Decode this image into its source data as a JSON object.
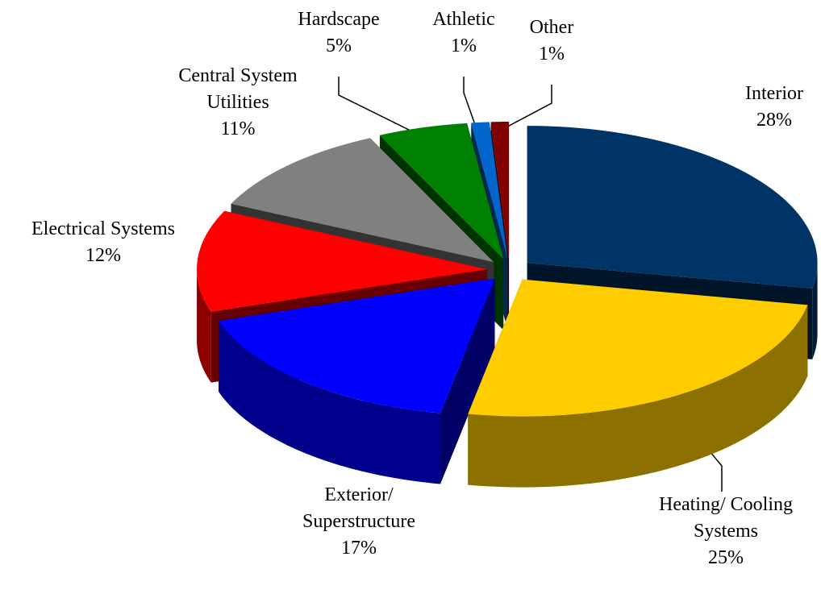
{
  "chart_data": {
    "type": "pie",
    "categories": [
      "Interior",
      "Heating/ Cooling Systems",
      "Exterior/ Superstructure",
      "Electrical Systems",
      "Central System Utilities",
      "Hardscape",
      "Athletic",
      "Other"
    ],
    "values": [
      28,
      25,
      17,
      12,
      11,
      5,
      1,
      1
    ],
    "value_labels": [
      "28%",
      "25%",
      "17%",
      "12%",
      "11%",
      "5%",
      "1%",
      "1%"
    ],
    "colors": [
      "#003366",
      "#ffcc00",
      "#0000ff",
      "#ff0000",
      "#808080",
      "#008000",
      "#0066cc",
      "#800000"
    ]
  }
}
